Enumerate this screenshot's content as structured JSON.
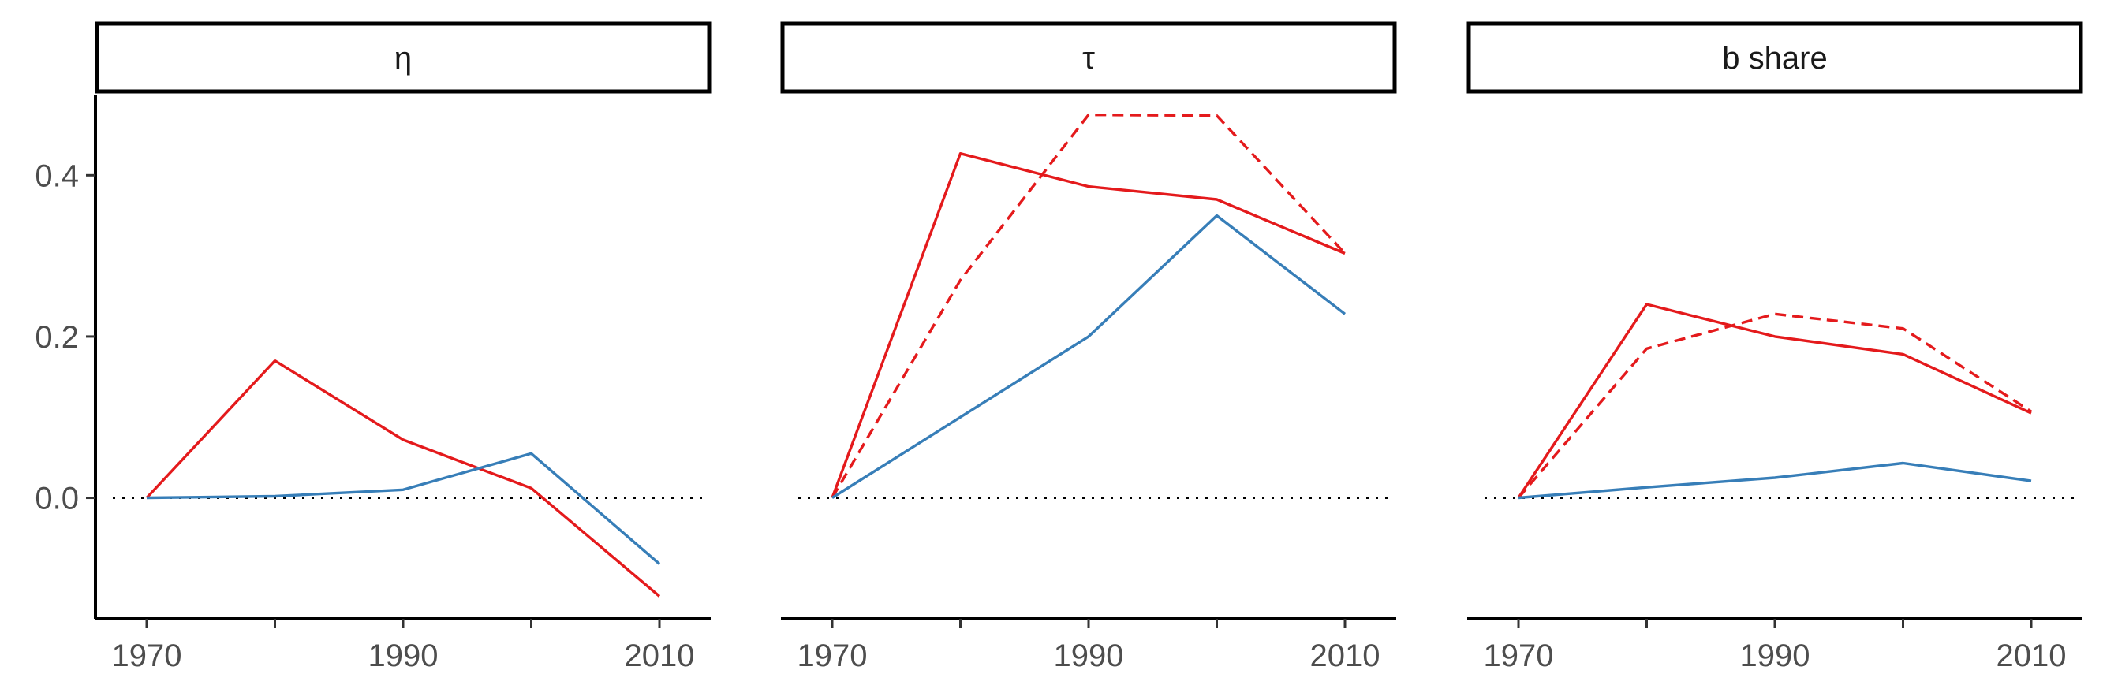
{
  "chart_data": {
    "type": "line",
    "x_ticks": [
      "1970",
      "1990",
      "2010"
    ],
    "y_ticks": [
      "0.0",
      "0.2",
      "0.4"
    ],
    "ylim": [
      -0.15,
      0.5
    ],
    "xlim": [
      1966,
      2014
    ],
    "colors": {
      "red": "#e41a1c",
      "blue": "#377eb8"
    },
    "panels": [
      {
        "strip": "η",
        "series": [
          {
            "color": "#e41a1c",
            "dashed": false,
            "points": [
              [
                1970,
                0.0
              ],
              [
                1980,
                0.17
              ],
              [
                1990,
                0.072
              ],
              [
                2000,
                0.012
              ],
              [
                2010,
                -0.122
              ]
            ]
          },
          {
            "color": "#377eb8",
            "dashed": false,
            "points": [
              [
                1970,
                0.0
              ],
              [
                1980,
                0.002
              ],
              [
                1990,
                0.01
              ],
              [
                2000,
                0.055
              ],
              [
                2010,
                -0.082
              ]
            ]
          }
        ]
      },
      {
        "strip": "τ",
        "series": [
          {
            "color": "#e41a1c",
            "dashed": false,
            "points": [
              [
                1970,
                0.0
              ],
              [
                1980,
                0.427
              ],
              [
                1990,
                0.386
              ],
              [
                2000,
                0.37
              ],
              [
                2010,
                0.303
              ]
            ]
          },
          {
            "color": "#e41a1c",
            "dashed": true,
            "points": [
              [
                1970,
                0.0
              ],
              [
                1980,
                0.27
              ],
              [
                1990,
                0.475
              ],
              [
                2000,
                0.474
              ],
              [
                2010,
                0.303
              ]
            ]
          },
          {
            "color": "#377eb8",
            "dashed": false,
            "points": [
              [
                1970,
                0.0
              ],
              [
                1980,
                0.1
              ],
              [
                1990,
                0.2
              ],
              [
                2000,
                0.35
              ],
              [
                2010,
                0.228
              ]
            ]
          }
        ]
      },
      {
        "strip": "b share",
        "series": [
          {
            "color": "#e41a1c",
            "dashed": false,
            "points": [
              [
                1970,
                0.0
              ],
              [
                1980,
                0.24
              ],
              [
                1990,
                0.2
              ],
              [
                2000,
                0.178
              ],
              [
                2010,
                0.105
              ]
            ]
          },
          {
            "color": "#e41a1c",
            "dashed": true,
            "points": [
              [
                1970,
                0.0
              ],
              [
                1980,
                0.185
              ],
              [
                1990,
                0.228
              ],
              [
                2000,
                0.21
              ],
              [
                2010,
                0.107
              ]
            ]
          },
          {
            "color": "#377eb8",
            "dashed": false,
            "points": [
              [
                1970,
                0.0
              ],
              [
                1980,
                0.013
              ],
              [
                1990,
                0.025
              ],
              [
                2000,
                0.043
              ],
              [
                2010,
                0.021
              ]
            ]
          }
        ]
      }
    ]
  }
}
